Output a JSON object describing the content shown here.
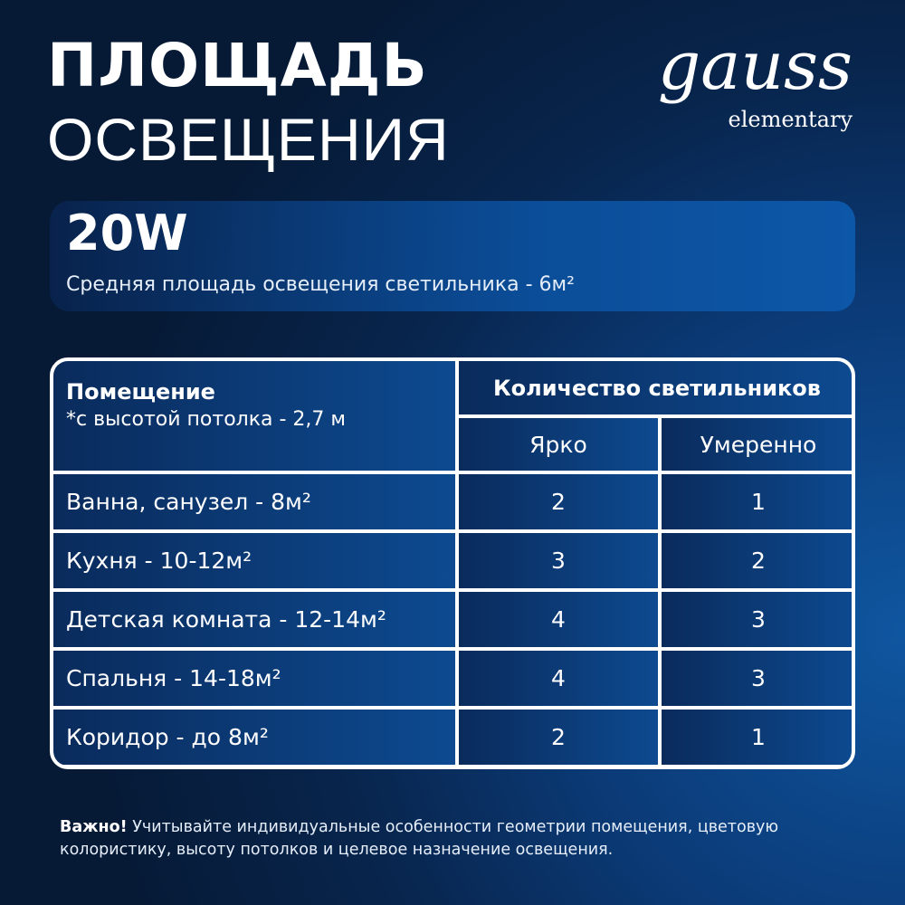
{
  "title": {
    "line1": "ПЛОЩАДЬ",
    "line2": "ОСВЕЩЕНИЯ"
  },
  "logo": {
    "brand": "gauss",
    "sub": "elementary"
  },
  "panel": {
    "power": "20W",
    "subtitle": "Средняя площадь освещения светильника - 6м²"
  },
  "table": {
    "room_header": "Помещение",
    "room_note": "*с высотой потолка - 2,7 м",
    "count_header": "Количество светильников",
    "col_bright": "Ярко",
    "col_moderate": "Умеренно",
    "rows": [
      {
        "room": "Ванна, санузел - 8м²",
        "bright": "2",
        "moderate": "1"
      },
      {
        "room": "Кухня - 10-12м²",
        "bright": "3",
        "moderate": "2"
      },
      {
        "room": "Детская комната - 12-14м²",
        "bright": "4",
        "moderate": "3"
      },
      {
        "room": "Спальня - 14-18м²",
        "bright": "4",
        "moderate": "3"
      },
      {
        "room": "Коридор - до 8м²",
        "bright": "2",
        "moderate": "1"
      }
    ]
  },
  "note": {
    "bold": "Важно!",
    "text": " Учитывайте индивидуальные особенности геометрии помещения, цветовую колористику, высоту потолков и целевое назначение освещения."
  }
}
